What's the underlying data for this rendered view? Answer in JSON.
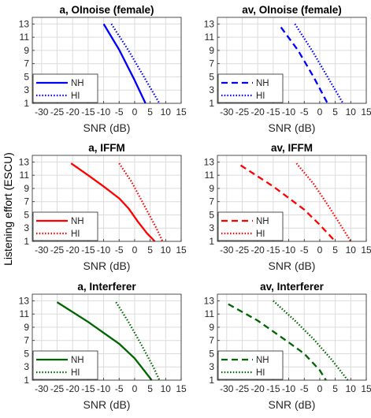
{
  "figure": {
    "ylabel": "Listening effort (ESCU)",
    "colors": {
      "OlNoise": "#0000ff",
      "IFFM": "#ff0000",
      "Interferer": "#006400"
    }
  },
  "chart_data": [
    {
      "type": "line",
      "title": "a, OInoise (female)",
      "xlabel": "SNR (dB)",
      "xlim": [
        -33,
        15
      ],
      "ylim": [
        1,
        14
      ],
      "xticks": [
        "-30",
        "-25",
        "-20",
        "-15",
        "-10",
        "-5",
        "0",
        "5",
        "10",
        "15"
      ],
      "yticks": [
        "1",
        "3",
        "5",
        "7",
        "9",
        "11",
        "13"
      ],
      "grid": true,
      "legend_position": "bottom-left",
      "series": [
        {
          "name": "NH",
          "style": "solid",
          "color": "#0000ff",
          "x": [
            -10,
            -5,
            0,
            3.5
          ],
          "y": [
            13,
            9.1,
            4.5,
            1.0
          ]
        },
        {
          "name": "HI",
          "style": "dotted",
          "color": "#0000ff",
          "x": [
            -7.5,
            -2,
            3,
            8
          ],
          "y": [
            13,
            9,
            5,
            1.0
          ]
        }
      ]
    },
    {
      "type": "line",
      "title": "av, OInoise (female)",
      "xlabel": "SNR (dB)",
      "xlim": [
        -33,
        15
      ],
      "ylim": [
        1,
        14
      ],
      "xticks": [
        "-30",
        "-25",
        "-20",
        "-15",
        "-10",
        "-5",
        "0",
        "5",
        "10",
        "15"
      ],
      "yticks": [
        "1",
        "3",
        "5",
        "7",
        "9",
        "11",
        "13"
      ],
      "grid": true,
      "legend_position": "bottom-left",
      "series": [
        {
          "name": "NH",
          "style": "dashed",
          "color": "#0000ff",
          "x": [
            -12.5,
            -7,
            -2,
            2.5
          ],
          "y": [
            12.5,
            9,
            5,
            1.0
          ]
        },
        {
          "name": "HI",
          "style": "dotted",
          "color": "#0000ff",
          "x": [
            -8,
            -2.5,
            2.5,
            7.5
          ],
          "y": [
            13,
            9,
            5,
            1.0
          ]
        }
      ]
    },
    {
      "type": "line",
      "title": "a, IFFM",
      "xlabel": "SNR (dB)",
      "xlim": [
        -33,
        15
      ],
      "ylim": [
        1,
        14
      ],
      "xticks": [
        "-30",
        "-25",
        "-20",
        "-15",
        "-10",
        "-5",
        "0",
        "5",
        "10",
        "15"
      ],
      "yticks": [
        "1",
        "3",
        "5",
        "7",
        "9",
        "11",
        "13"
      ],
      "grid": true,
      "legend_position": "bottom-left",
      "series": [
        {
          "name": "NH",
          "style": "solid",
          "color": "#ff0000",
          "x": [
            -20.5,
            -15,
            -10,
            -5,
            -2,
            1,
            4,
            6.5
          ],
          "y": [
            12.8,
            11,
            9.3,
            7.5,
            6,
            4,
            2.2,
            1.0
          ]
        },
        {
          "name": "HI",
          "style": "dotted",
          "color": "#ff0000",
          "x": [
            -5,
            -1,
            3,
            7,
            9
          ],
          "y": [
            12.8,
            10,
            6.5,
            3,
            1.0
          ]
        }
      ]
    },
    {
      "type": "line",
      "title": "av, IFFM",
      "xlabel": "SNR (dB)",
      "xlim": [
        -33,
        15
      ],
      "ylim": [
        1,
        14
      ],
      "xticks": [
        "-30",
        "-25",
        "-20",
        "-15",
        "-10",
        "-5",
        "0",
        "5",
        "10",
        "15"
      ],
      "yticks": [
        "1",
        "3",
        "5",
        "7",
        "9",
        "11",
        "13"
      ],
      "grid": true,
      "legend_position": "bottom-left",
      "series": [
        {
          "name": "NH",
          "style": "dashed",
          "color": "#ff0000",
          "x": [
            -25.5,
            -15,
            -5,
            0,
            5
          ],
          "y": [
            12.5,
            9.3,
            5.8,
            3.5,
            1.0
          ]
        },
        {
          "name": "HI",
          "style": "dotted",
          "color": "#ff0000",
          "x": [
            -7.5,
            -2,
            3,
            8,
            10
          ],
          "y": [
            12.8,
            9.7,
            6.2,
            2.5,
            1.0
          ]
        }
      ]
    },
    {
      "type": "line",
      "title": "a, Interferer",
      "xlabel": "SNR (dB)",
      "xlim": [
        -33,
        15
      ],
      "ylim": [
        1,
        14
      ],
      "xticks": [
        "-30",
        "-25",
        "-20",
        "-15",
        "-10",
        "-5",
        "0",
        "5",
        "10",
        "15"
      ],
      "yticks": [
        "1",
        "3",
        "5",
        "7",
        "9",
        "11",
        "13"
      ],
      "grid": true,
      "legend_position": "bottom-left",
      "series": [
        {
          "name": "NH",
          "style": "solid",
          "color": "#006400",
          "x": [
            -25,
            -15,
            -5,
            0,
            5.5
          ],
          "y": [
            12.8,
            9.8,
            6.5,
            4.3,
            1.0
          ]
        },
        {
          "name": "HI",
          "style": "dotted",
          "color": "#006400",
          "x": [
            -6,
            -2,
            2,
            6,
            8
          ],
          "y": [
            12.8,
            9.8,
            6.5,
            3,
            1.0
          ]
        }
      ]
    },
    {
      "type": "line",
      "title": "av, Interferer",
      "xlabel": "SNR (dB)",
      "xlim": [
        -33,
        15
      ],
      "ylim": [
        1,
        14
      ],
      "xticks": [
        "-30",
        "-25",
        "-20",
        "-15",
        "-10",
        "-5",
        "0",
        "5",
        "10",
        "15"
      ],
      "yticks": [
        "1",
        "3",
        "5",
        "7",
        "9",
        "11",
        "13"
      ],
      "grid": true,
      "legend_position": "bottom-left",
      "series": [
        {
          "name": "NH",
          "style": "dashed",
          "color": "#006400",
          "x": [
            -29.5,
            -20,
            -10,
            -5,
            0,
            2
          ],
          "y": [
            12.5,
            10,
            6.7,
            5,
            2.5,
            1.0
          ]
        },
        {
          "name": "HI",
          "style": "dotted",
          "color": "#006400",
          "x": [
            -15,
            -8,
            -2,
            4,
            9
          ],
          "y": [
            13,
            10,
            7.2,
            4,
            1.0
          ]
        }
      ]
    }
  ]
}
